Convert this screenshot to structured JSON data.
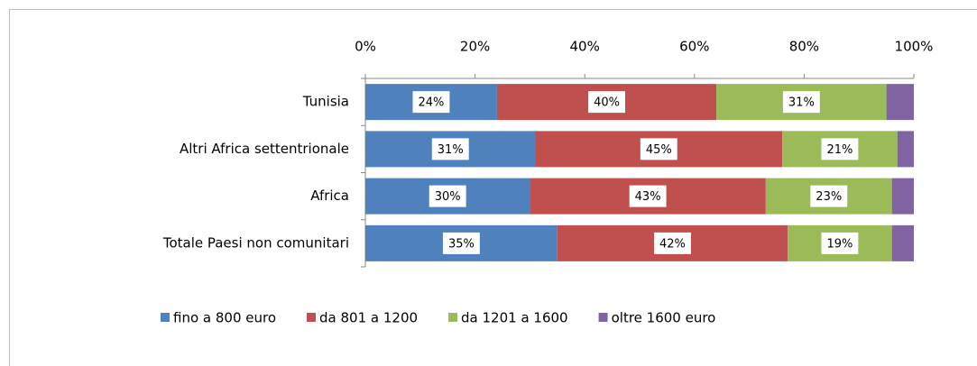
{
  "chart_data": {
    "type": "bar",
    "orientation": "horizontal",
    "stacked": true,
    "categories": [
      "Tunisia",
      "Altri Africa settentrionale",
      "Africa",
      "Totale Paesi non comunitari"
    ],
    "series": [
      {
        "name": "fino a 800 euro",
        "color": "#4f81bd",
        "values": [
          24,
          31,
          30,
          35
        ],
        "value_labels": [
          "24%",
          "31%",
          "30%",
          "35%"
        ]
      },
      {
        "name": "da 801 a 1200",
        "color": "#c0504d",
        "values": [
          40,
          45,
          43,
          42
        ],
        "value_labels": [
          "40%",
          "45%",
          "43%",
          "42%"
        ]
      },
      {
        "name": "da 1201 a 1600",
        "color": "#9bbb59",
        "values": [
          31,
          21,
          23,
          19
        ],
        "value_labels": [
          "31%",
          "21%",
          "23%",
          "19%"
        ]
      },
      {
        "name": "oltre 1600 euro",
        "color": "#8064a2",
        "values": [
          5,
          3,
          4,
          4
        ]
      }
    ],
    "xlim": [
      0,
      100
    ],
    "xticks": [
      {
        "value": 0,
        "label": "0%"
      },
      {
        "value": 20,
        "label": "20%"
      },
      {
        "value": 40,
        "label": "40%"
      },
      {
        "value": 60,
        "label": "60%"
      },
      {
        "value": 80,
        "label": "80%"
      },
      {
        "value": 100,
        "label": "100%"
      }
    ],
    "legend": "bottom"
  }
}
